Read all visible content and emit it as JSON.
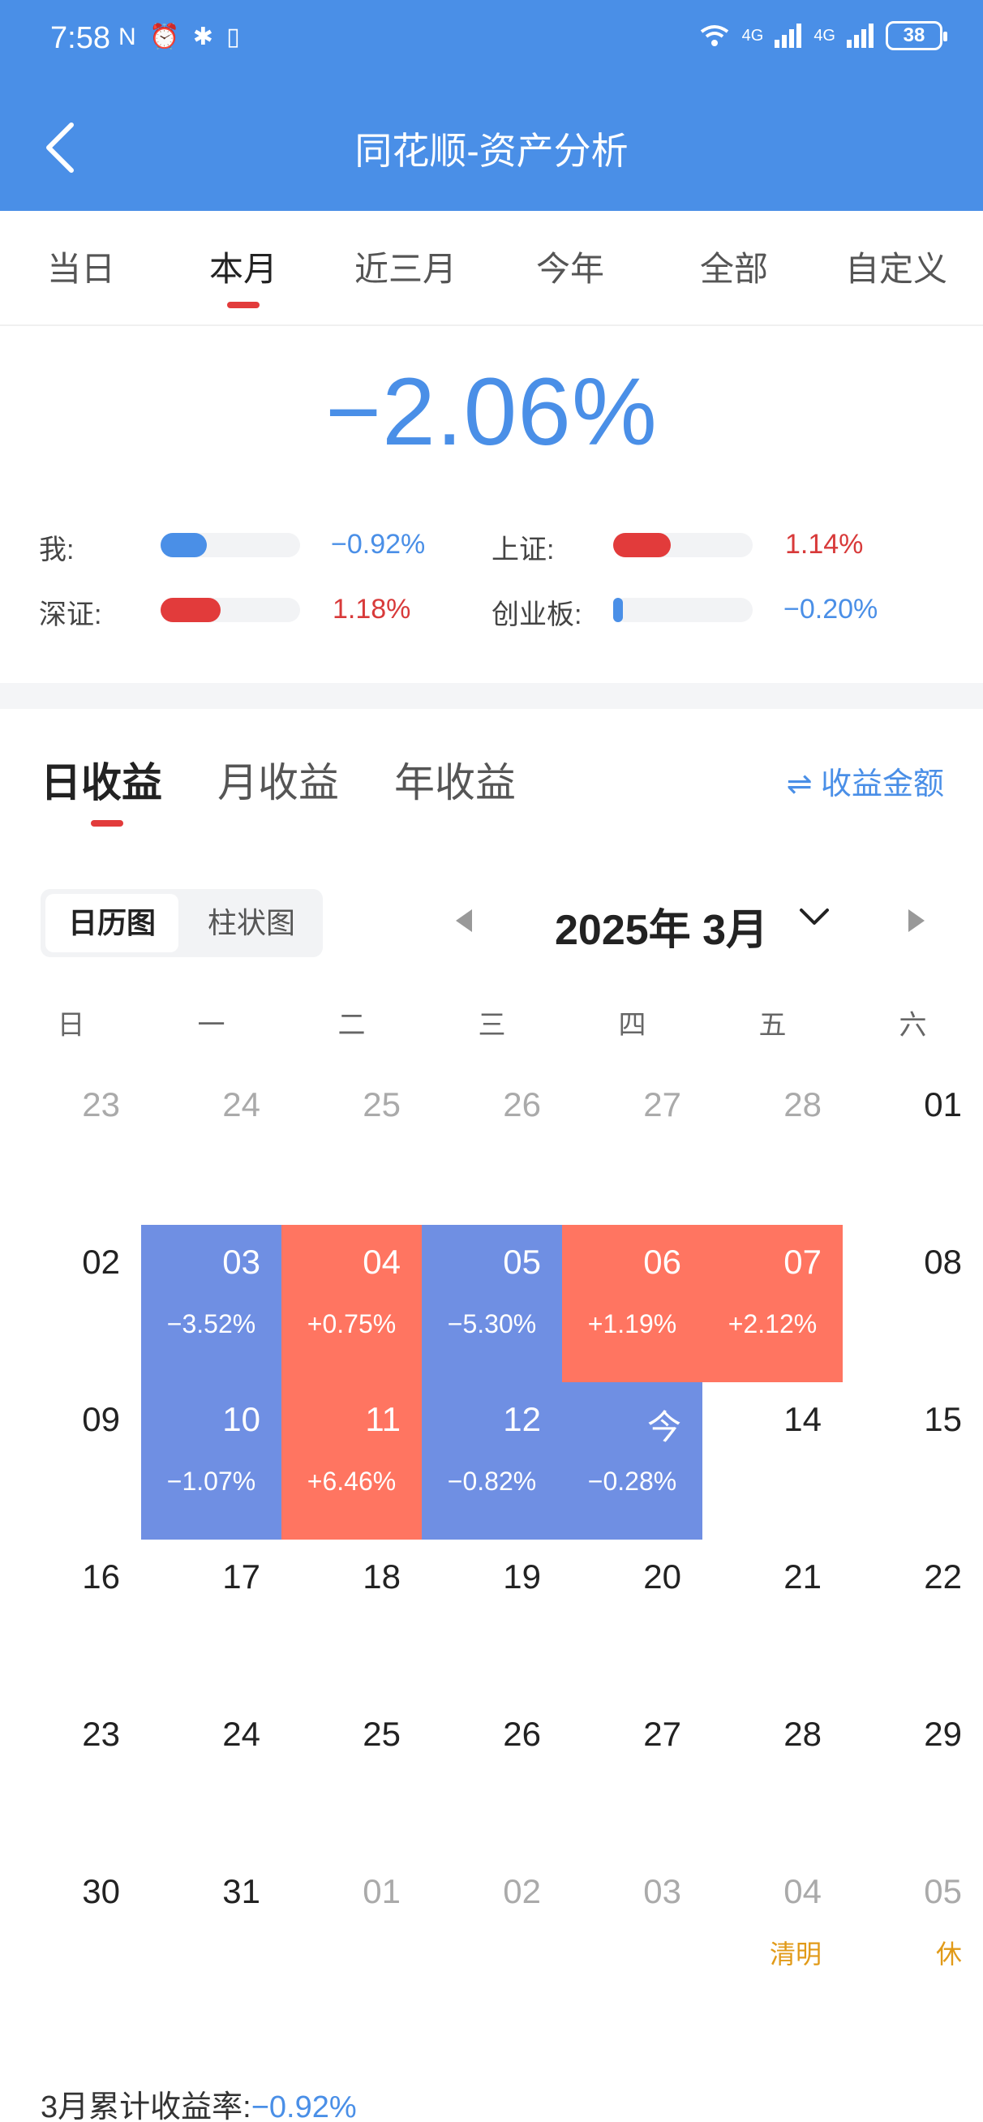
{
  "status_bar": {
    "time": "7:58",
    "left_icons": "N ⏰ ✱ ▯",
    "net_label": "4G",
    "net_label2": "4G",
    "battery": "38"
  },
  "header": {
    "title": "同花顺-资产分析"
  },
  "period_tabs": [
    "当日",
    "本月",
    "近三月",
    "今年",
    "全部",
    "自定义"
  ],
  "period_active": "本月",
  "summary_value": "−2.06%",
  "comparisons": [
    {
      "label": "我:",
      "value": "−0.92%",
      "fill": 0.33,
      "color": "#4a8fe7"
    },
    {
      "label": "上证:",
      "value": "1.14%",
      "fill": 0.41,
      "color": "#e23b3b"
    },
    {
      "label": "深证:",
      "value": "1.18%",
      "fill": 0.43,
      "color": "#e23b3b"
    },
    {
      "label": "创业板:",
      "value": "−0.20%",
      "fill": 0.06,
      "color": "#4a8fe7"
    }
  ],
  "return_tabs": [
    "日收益",
    "月收益",
    "年收益"
  ],
  "return_switch": "⇌ 收益金额",
  "view_toggle": {
    "calendar": "日历图",
    "bar": "柱状图"
  },
  "month_label": "2025年 3月",
  "weekdays": [
    "日",
    "一",
    "二",
    "三",
    "四",
    "五",
    "六"
  ],
  "calendar_rows": [
    [
      {
        "d": "23",
        "m": 1
      },
      {
        "d": "24",
        "m": 1
      },
      {
        "d": "25",
        "m": 1
      },
      {
        "d": "26",
        "m": 1
      },
      {
        "d": "27",
        "m": 1
      },
      {
        "d": "28",
        "m": 1
      },
      {
        "d": "01"
      }
    ],
    [
      {
        "d": "02"
      },
      {
        "d": "03",
        "p": "−3.52%",
        "t": "down"
      },
      {
        "d": "04",
        "p": "+0.75%",
        "t": "up"
      },
      {
        "d": "05",
        "p": "−5.30%",
        "t": "down"
      },
      {
        "d": "06",
        "p": "+1.19%",
        "t": "up"
      },
      {
        "d": "07",
        "p": "+2.12%",
        "t": "up"
      },
      {
        "d": "08"
      }
    ],
    [
      {
        "d": "09"
      },
      {
        "d": "10",
        "p": "−1.07%",
        "t": "down"
      },
      {
        "d": "11",
        "p": "+6.46%",
        "t": "up"
      },
      {
        "d": "12",
        "p": "−0.82%",
        "t": "down"
      },
      {
        "d": "今",
        "p": "−0.28%",
        "t": "down"
      },
      {
        "d": "14"
      },
      {
        "d": "15"
      }
    ],
    [
      {
        "d": "16"
      },
      {
        "d": "17"
      },
      {
        "d": "18"
      },
      {
        "d": "19"
      },
      {
        "d": "20"
      },
      {
        "d": "21"
      },
      {
        "d": "22"
      }
    ],
    [
      {
        "d": "23"
      },
      {
        "d": "24"
      },
      {
        "d": "25"
      },
      {
        "d": "26"
      },
      {
        "d": "27"
      },
      {
        "d": "28"
      },
      {
        "d": "29"
      }
    ],
    [
      {
        "d": "30"
      },
      {
        "d": "31"
      },
      {
        "d": "01",
        "m": 1
      },
      {
        "d": "02",
        "m": 1
      },
      {
        "d": "03",
        "m": 1
      },
      {
        "d": "04",
        "m": 1,
        "tag": "清明"
      },
      {
        "d": "05",
        "m": 1,
        "tag": "休"
      }
    ]
  ],
  "summary": {
    "label": "3月累计收益率:",
    "value": "−0.92%"
  }
}
